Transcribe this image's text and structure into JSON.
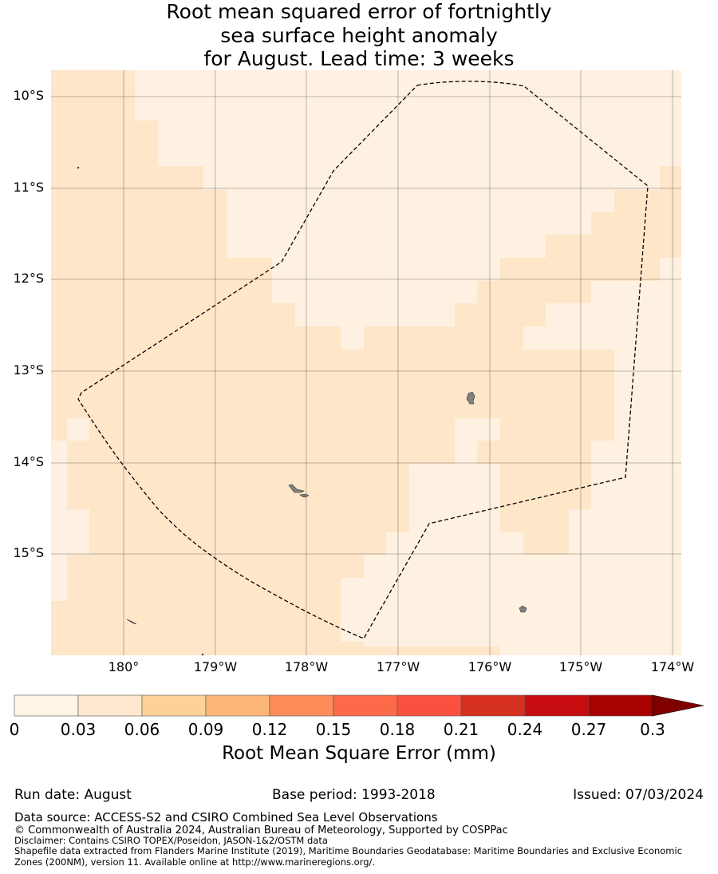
{
  "title": {
    "line1": "Root mean squared error of fortnightly",
    "line2": "sea surface height anomaly",
    "line3": "for August. Lead time: 3 weeks"
  },
  "map": {
    "lat_labels": [
      "10°S",
      "11°S",
      "12°S",
      "13°S",
      "14°S",
      "15°S"
    ],
    "lon_labels": [
      "180°",
      "179°W",
      "178°W",
      "177°W",
      "176°W",
      "175°W",
      "174°W"
    ],
    "colors": {
      "bin_0_003": "#fff1e1",
      "bin_003_006": "#fee6c9",
      "boundary": "#000000",
      "land": "#808080"
    }
  },
  "colorbar": {
    "tick_labels": [
      "0",
      "0.03",
      "0.06",
      "0.09",
      "0.12",
      "0.15",
      "0.18",
      "0.21",
      "0.24",
      "0.27",
      "0.3"
    ],
    "colors": [
      "#fff4e6",
      "#fee8cf",
      "#fdd19a",
      "#fdb67a",
      "#fc8d59",
      "#fc6a4a",
      "#fa5040",
      "#d6301f",
      "#c70c0f",
      "#a90000"
    ],
    "extend_color": "#800000",
    "label": "Root Mean Square Error (mm)"
  },
  "footer": {
    "run_date": "Run date: August",
    "base_period": "Base period: 1993-2018",
    "issued": "Issued: 07/03/2024",
    "data_source": "Data source: ACCESS-S2 and CSIRO Combined Sea Level Observations",
    "copyright": "© Commonwealth of Australia 2024, Australian Bureau of Meteorology, Supported by COSPPac",
    "disclaimer": "Disclaimer: Contains CSIRO TOPEX/Poseidon, JASON-1&2/OSTM data",
    "shapefile_line1": "Shapefile data extracted from Flanders Marine Institute (2019), Maritime Boundaries Geodatabase: Maritime Boundaries and Exclusive Economic",
    "shapefile_line2": "Zones (200NM), version 11. Available online at http://www.marineregions.org/."
  }
}
